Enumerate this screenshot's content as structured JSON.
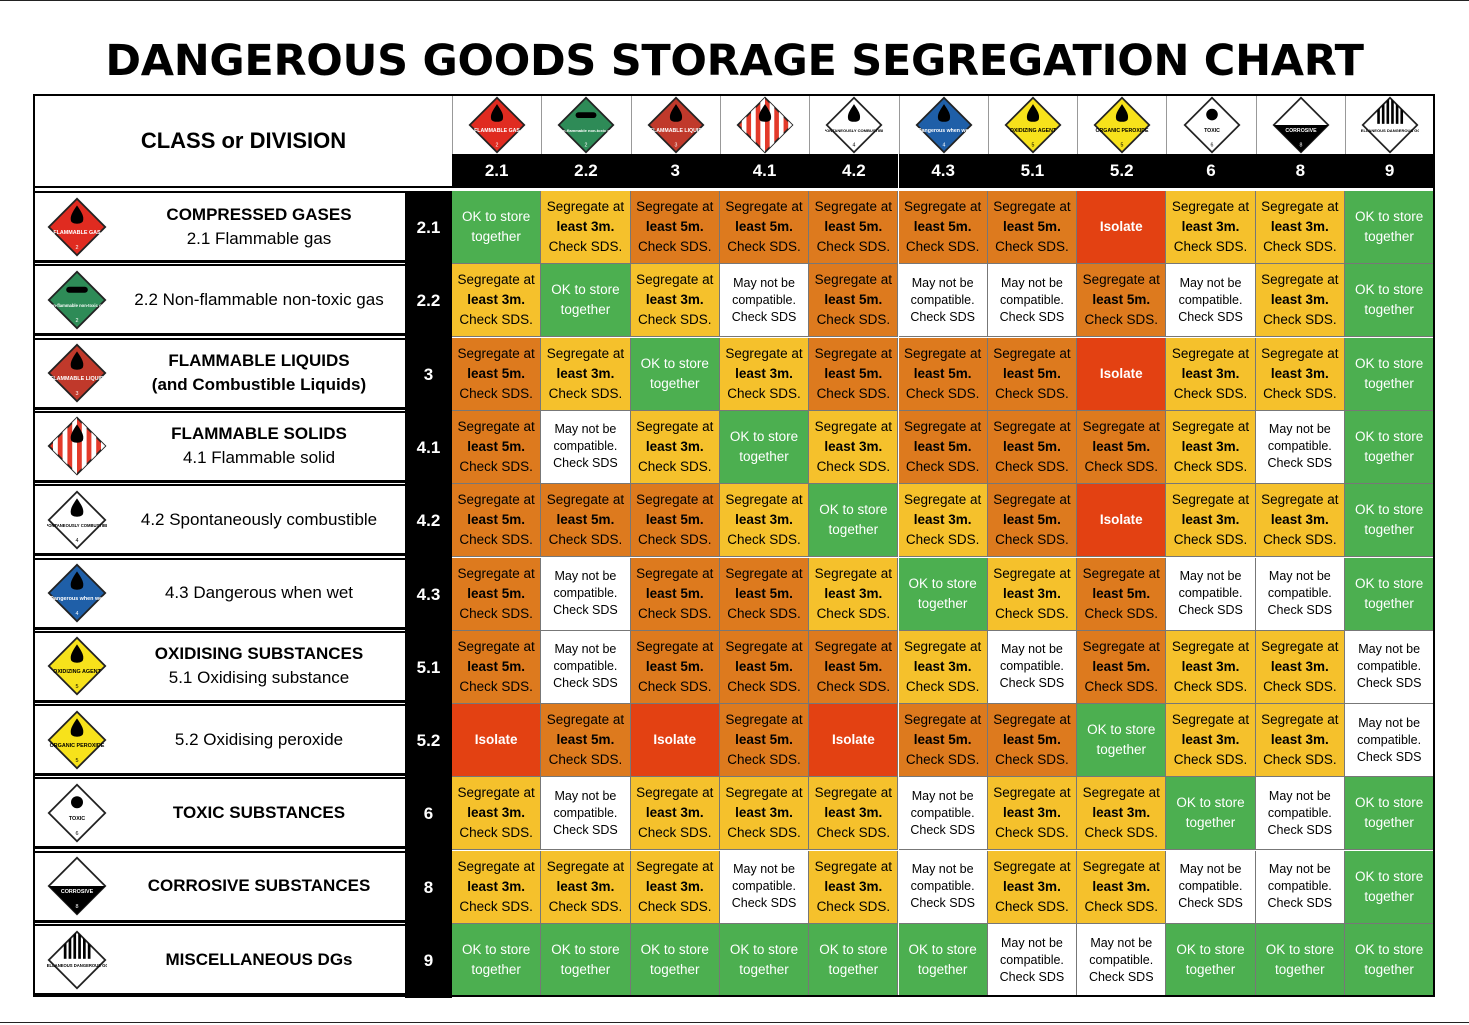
{
  "title": "DANGEROUS GOODS STORAGE SEGREGATION CHART",
  "header_label": "CLASS or DIVISION",
  "colors": {
    "ok": "#4caf50",
    "segregate_3m": "#f5c12c",
    "segregate_5m": "#dd7a1e",
    "isolate": "#e34112",
    "may_not": "#ffffff"
  },
  "columns": [
    {
      "code": "2.1",
      "icon": "flammable-gas-icon",
      "sign": "FLAMMABLE GAS",
      "color": "#e02b20",
      "fg": "#fff",
      "stripes": false
    },
    {
      "code": "2.2",
      "icon": "non-flammable-gas-icon",
      "sign": "Non-flammable non-toxic gas",
      "color": "#2e8b57",
      "fg": "#fff",
      "stripes": false
    },
    {
      "code": "3",
      "icon": "flammable-liquid-icon",
      "sign": "FLAMMABLE LIQUID",
      "color": "#c0392b",
      "fg": "#fff",
      "stripes": false
    },
    {
      "code": "4.1",
      "icon": "flammable-solid-icon",
      "sign": "",
      "color": "#e33a2a",
      "fg": "#fff",
      "stripes": true
    },
    {
      "code": "4.2",
      "icon": "spontaneously-combustible-icon",
      "sign": "SPONTANEOUSLY COMBUSTIBLE",
      "color": "#ffffff",
      "fg": "#000",
      "stripes": false
    },
    {
      "code": "4.3",
      "icon": "dangerous-when-wet-icon",
      "sign": "Dangerous when wet",
      "color": "#1f5fa8",
      "fg": "#fff",
      "stripes": false
    },
    {
      "code": "5.1",
      "icon": "oxidizing-agent-icon",
      "sign": "OXIDIZING AGENT",
      "color": "#f7e21b",
      "fg": "#000",
      "stripes": false
    },
    {
      "code": "5.2",
      "icon": "organic-peroxide-icon",
      "sign": "ORGANIC PEROXIDE",
      "color": "#f7e21b",
      "fg": "#000",
      "stripes": false
    },
    {
      "code": "6",
      "icon": "toxic-icon",
      "sign": "TOXIC",
      "color": "#ffffff",
      "fg": "#000",
      "stripes": false
    },
    {
      "code": "8",
      "icon": "corrosive-icon",
      "sign": "CORROSIVE",
      "color": "#ffffff",
      "fg": "#000",
      "stripes": false
    },
    {
      "code": "9",
      "icon": "miscellaneous-icon",
      "sign": "MISCELLANEOUS DANGEROUS GOODS",
      "color": "#ffffff",
      "fg": "#000",
      "stripes": false
    }
  ],
  "cell_text": {
    "ok": [
      "OK to store",
      "together"
    ],
    "s3": [
      "Segregate at",
      "least 3m.",
      "Check SDS."
    ],
    "s5": [
      "Segregate at",
      "least 5m.",
      "Check SDS."
    ],
    "iso": [
      "Isolate"
    ],
    "may": [
      "May not be",
      "compatible.",
      "Check SDS"
    ]
  },
  "rows": [
    {
      "code": "2.1",
      "bold": "COMPRESSED GASES",
      "sub": "2.1 Flammable gas",
      "icon": "flammable-gas-icon",
      "cells": [
        "ok",
        "s3",
        "s5",
        "s5",
        "s5",
        "s5",
        "s5",
        "iso",
        "s3",
        "s3",
        "ok"
      ]
    },
    {
      "code": "2.2",
      "bold": "",
      "sub": "2.2 Non-flammable non-toxic gas",
      "icon": "non-flammable-gas-icon",
      "cells": [
        "s3",
        "ok",
        "s3",
        "may",
        "s5",
        "may",
        "may",
        "s5",
        "may",
        "s3",
        "ok"
      ]
    },
    {
      "code": "3",
      "bold": "FLAMMABLE LIQUIDS",
      "bold2": "(and Combustible Liquids)",
      "sub": "",
      "icon": "flammable-liquid-icon",
      "cells": [
        "s5",
        "s3",
        "ok",
        "s3",
        "s5",
        "s5",
        "s5",
        "iso",
        "s3",
        "s3",
        "ok"
      ]
    },
    {
      "code": "4.1",
      "bold": "FLAMMABLE SOLIDS",
      "sub": "4.1 Flammable solid",
      "icon": "flammable-solid-icon",
      "cells": [
        "s5",
        "may",
        "s3",
        "ok",
        "s3",
        "s5",
        "s5",
        "s5",
        "s3",
        "may",
        "ok"
      ]
    },
    {
      "code": "4.2",
      "bold": "",
      "sub": "4.2 Spontaneously combustible",
      "icon": "spontaneously-combustible-icon",
      "cells": [
        "s5",
        "s5",
        "s5",
        "s3",
        "ok",
        "s3",
        "s5",
        "iso",
        "s3",
        "s3",
        "ok"
      ]
    },
    {
      "code": "4.3",
      "bold": "",
      "sub": "4.3 Dangerous when wet",
      "icon": "dangerous-when-wet-icon",
      "cells": [
        "s5",
        "may",
        "s5",
        "s5",
        "s3",
        "ok",
        "s3",
        "s5",
        "may",
        "may",
        "ok"
      ]
    },
    {
      "code": "5.1",
      "bold": "OXIDISING SUBSTANCES",
      "sub": "5.1 Oxidising substance",
      "icon": "oxidizing-agent-icon",
      "cells": [
        "s5",
        "may",
        "s5",
        "s5",
        "s5",
        "s3",
        "may",
        "s5",
        "s3",
        "s3",
        "may"
      ]
    },
    {
      "code": "5.2",
      "bold": "",
      "sub": "5.2 Oxidising peroxide",
      "icon": "organic-peroxide-icon",
      "cells": [
        "iso",
        "s5",
        "iso",
        "s5",
        "iso",
        "s5",
        "s5",
        "ok",
        "s3",
        "s3",
        "may"
      ]
    },
    {
      "code": "6",
      "bold": "TOXIC SUBSTANCES",
      "sub": "",
      "icon": "toxic-icon",
      "cells": [
        "s3",
        "may",
        "s3",
        "s3",
        "s3",
        "may",
        "s3",
        "s3",
        "ok",
        "may",
        "ok"
      ]
    },
    {
      "code": "8",
      "bold": "CORROSIVE SUBSTANCES",
      "sub": "",
      "icon": "corrosive-icon",
      "cells": [
        "s3",
        "s3",
        "s3",
        "may",
        "s3",
        "may",
        "s3",
        "s3",
        "may",
        "may",
        "ok"
      ]
    },
    {
      "code": "9",
      "bold": "MISCELLANEOUS DGs",
      "sub": "",
      "icon": "miscellaneous-icon",
      "cells": [
        "ok",
        "ok",
        "ok",
        "ok",
        "ok",
        "ok",
        "may",
        "may",
        "ok",
        "ok",
        "ok"
      ]
    }
  ]
}
